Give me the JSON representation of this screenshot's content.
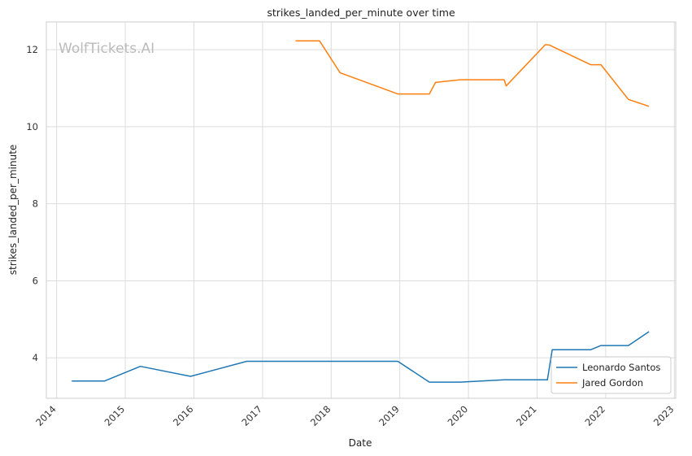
{
  "chart_data": {
    "type": "line",
    "title": "strikes_landed_per_minute over time",
    "xlabel": "Date",
    "ylabel": "strikes_landed_per_minute",
    "watermark": "WolfTickets.AI",
    "xlim": [
      2013.85,
      2023.02
    ],
    "ylim": [
      2.95,
      12.72
    ],
    "x_ticks": [
      2014,
      2015,
      2016,
      2017,
      2018,
      2019,
      2020,
      2021,
      2022,
      2023
    ],
    "x_tick_labels": [
      "2014",
      "2015",
      "2016",
      "2017",
      "2018",
      "2019",
      "2020",
      "2021",
      "2022",
      "2023"
    ],
    "y_ticks": [
      4,
      6,
      8,
      10,
      12
    ],
    "y_tick_labels": [
      "4",
      "6",
      "8",
      "10",
      "12"
    ],
    "grid": true,
    "legend_position": "bottom-right",
    "series": [
      {
        "name": "Leonardo Santos",
        "color": "#1f77b4",
        "points": [
          [
            2014.22,
            3.4
          ],
          [
            2014.7,
            3.4
          ],
          [
            2015.22,
            3.78
          ],
          [
            2015.95,
            3.52
          ],
          [
            2016.77,
            3.91
          ],
          [
            2018.97,
            3.91
          ],
          [
            2019.43,
            3.37
          ],
          [
            2019.88,
            3.37
          ],
          [
            2020.52,
            3.43
          ],
          [
            2021.15,
            3.43
          ],
          [
            2021.22,
            4.21
          ],
          [
            2021.78,
            4.21
          ],
          [
            2021.93,
            4.32
          ],
          [
            2022.33,
            4.32
          ],
          [
            2022.63,
            4.68
          ]
        ]
      },
      {
        "name": "Jared Gordon",
        "color": "#ff7f0e",
        "points": [
          [
            2017.48,
            12.23
          ],
          [
            2017.83,
            12.23
          ],
          [
            2018.13,
            11.4
          ],
          [
            2018.97,
            10.85
          ],
          [
            2019.43,
            10.85
          ],
          [
            2019.52,
            11.15
          ],
          [
            2019.88,
            11.22
          ],
          [
            2020.52,
            11.22
          ],
          [
            2020.55,
            11.06
          ],
          [
            2021.12,
            12.13
          ],
          [
            2021.18,
            12.12
          ],
          [
            2021.78,
            11.61
          ],
          [
            2021.93,
            11.61
          ],
          [
            2022.33,
            10.71
          ],
          [
            2022.63,
            10.53
          ]
        ]
      }
    ]
  }
}
